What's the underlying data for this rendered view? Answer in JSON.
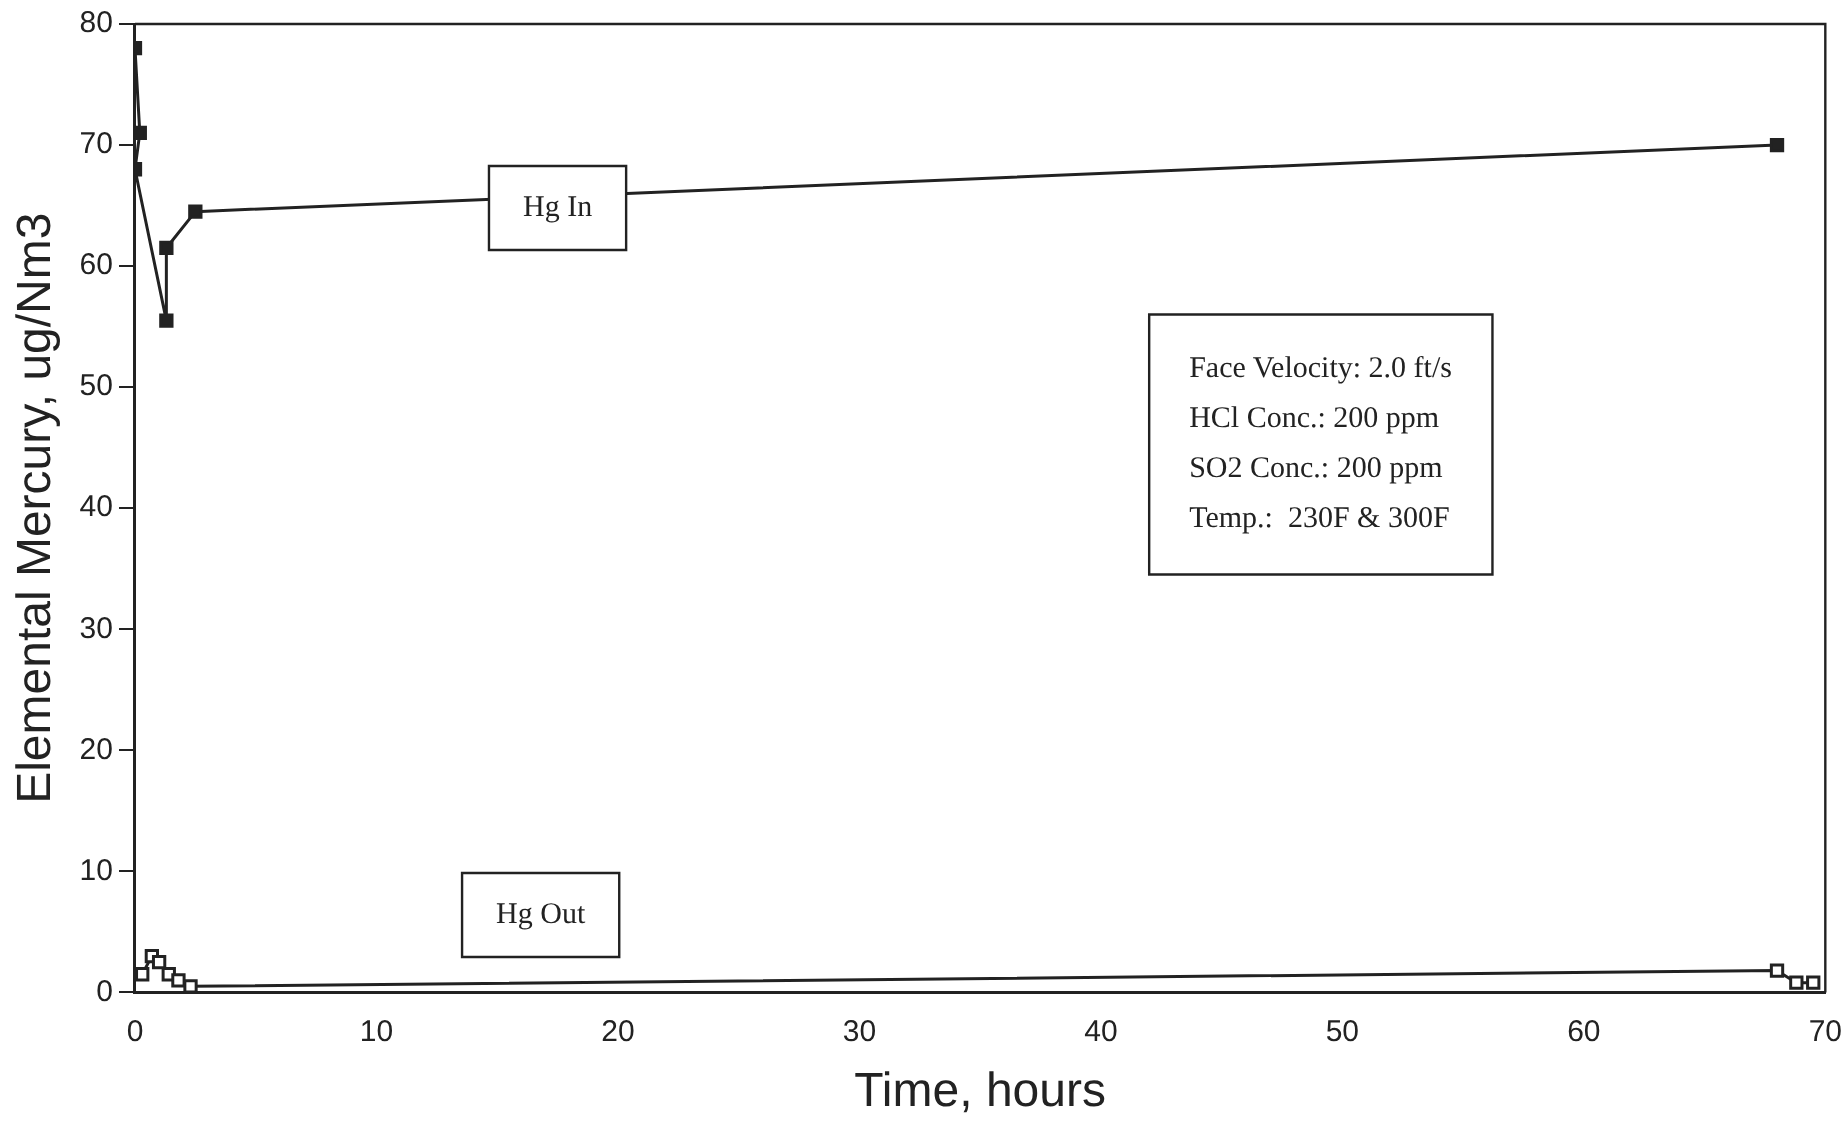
{
  "chart_data": {
    "type": "line",
    "xlabel": "Time, hours",
    "ylabel": "Elemental Mercury, ug/Nm3",
    "xlim": [
      0,
      70
    ],
    "xticks": [
      0,
      10,
      20,
      30,
      40,
      50,
      60,
      70
    ],
    "ylim": [
      0,
      80
    ],
    "yticks": [
      0,
      10,
      20,
      30,
      40,
      50,
      60,
      70,
      80
    ],
    "grid": false,
    "legend": false,
    "marker": "square",
    "line_style": "solid",
    "series": [
      {
        "name": "Hg In",
        "color": "#222222",
        "x": [
          0,
          0.2,
          0,
          1.3,
          1.3,
          2.5,
          68
        ],
        "values": [
          78,
          71,
          68,
          55.5,
          61.5,
          64.5,
          70
        ]
      },
      {
        "name": "Hg Out",
        "color": "#222222",
        "x": [
          0.3,
          0.7,
          1,
          1.4,
          1.8,
          2.3,
          68,
          68.8,
          69.5
        ],
        "values": [
          1.5,
          3,
          2.5,
          1.5,
          1,
          0.5,
          1.8,
          0.8,
          0.8
        ]
      }
    ],
    "annotations": [
      "Face Velocity: 2.0 ft/s",
      "HCl Conc.: 200 ppm",
      "SO2 Conc.: 200 ppm",
      "Temp.:  230F & 300F"
    ]
  }
}
